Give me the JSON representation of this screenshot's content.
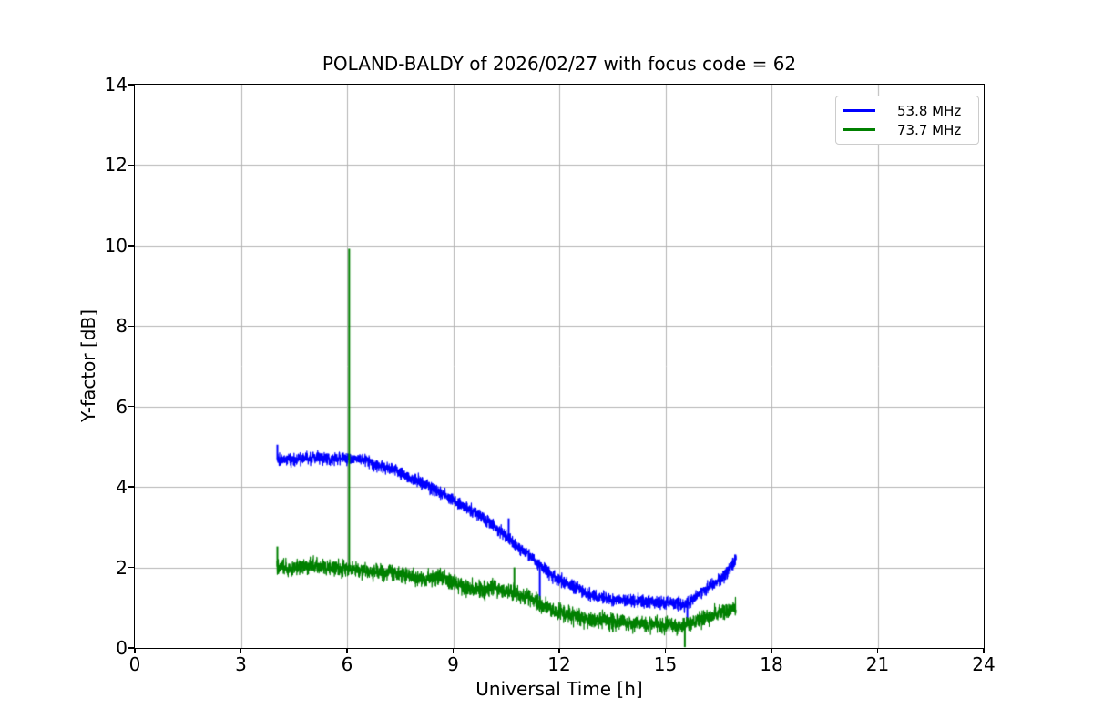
{
  "chart_data": {
    "type": "line",
    "title": "POLAND-BALDY of 2026/02/27 with focus code = 62",
    "xlabel": "Universal Time [h]",
    "ylabel": "Y-factor [dB]",
    "xlim": [
      0,
      24
    ],
    "ylim": [
      0,
      14
    ],
    "x_ticks": [
      0,
      3,
      6,
      9,
      12,
      15,
      18,
      21,
      24
    ],
    "y_ticks": [
      0,
      2,
      4,
      6,
      8,
      10,
      12,
      14
    ],
    "grid": true,
    "grid_color": "#b3b3b3",
    "axis_color": "#000000",
    "background_color": "#ffffff",
    "legend_position": "upper right",
    "series": [
      {
        "name": "53.8 MHz",
        "color": "#0000ff",
        "noise_db": 0.075,
        "points": [
          [
            4.02,
            4.7
          ],
          [
            4.4,
            4.68
          ],
          [
            4.8,
            4.71
          ],
          [
            5.2,
            4.72
          ],
          [
            5.6,
            4.71
          ],
          [
            6.0,
            4.72
          ],
          [
            6.3,
            4.74
          ],
          [
            6.55,
            4.66
          ],
          [
            6.8,
            4.56
          ],
          [
            7.1,
            4.49
          ],
          [
            7.4,
            4.4
          ],
          [
            7.7,
            4.28
          ],
          [
            8.0,
            4.16
          ],
          [
            8.3,
            4.02
          ],
          [
            8.6,
            3.88
          ],
          [
            8.9,
            3.74
          ],
          [
            9.2,
            3.58
          ],
          [
            9.5,
            3.42
          ],
          [
            9.8,
            3.26
          ],
          [
            10.1,
            3.07
          ],
          [
            10.4,
            2.86
          ],
          [
            10.7,
            2.62
          ],
          [
            11.0,
            2.4
          ],
          [
            11.3,
            2.18
          ],
          [
            11.6,
            1.95
          ],
          [
            11.9,
            1.74
          ],
          [
            12.2,
            1.6
          ],
          [
            12.5,
            1.48
          ],
          [
            12.8,
            1.36
          ],
          [
            13.1,
            1.28
          ],
          [
            13.5,
            1.22
          ],
          [
            14.0,
            1.18
          ],
          [
            14.5,
            1.15
          ],
          [
            15.0,
            1.13
          ],
          [
            15.3,
            1.1
          ],
          [
            15.55,
            1.07
          ],
          [
            15.8,
            1.22
          ],
          [
            16.1,
            1.45
          ],
          [
            16.4,
            1.62
          ],
          [
            16.7,
            1.82
          ],
          [
            17.0,
            2.22
          ]
        ],
        "spikes": [
          {
            "t": 4.03,
            "peak": 5.05
          },
          {
            "t": 6.75,
            "peak": 4.38
          },
          {
            "t": 10.57,
            "peak": 3.22
          },
          {
            "t": 11.45,
            "peak": 1.22
          },
          {
            "t": 15.62,
            "peak": 0.72
          },
          {
            "t": 16.98,
            "peak": 2.32
          }
        ]
      },
      {
        "name": "73.7 MHz",
        "color": "#008000",
        "noise_db": 0.1,
        "points": [
          [
            4.02,
            2.02
          ],
          [
            4.4,
            1.98
          ],
          [
            4.8,
            2.03
          ],
          [
            5.1,
            2.05
          ],
          [
            5.4,
            2.0
          ],
          [
            5.7,
            1.97
          ],
          [
            6.0,
            1.98
          ],
          [
            6.3,
            1.92
          ],
          [
            6.6,
            1.9
          ],
          [
            6.9,
            1.88
          ],
          [
            7.2,
            1.86
          ],
          [
            7.5,
            1.83
          ],
          [
            7.8,
            1.79
          ],
          [
            8.1,
            1.74
          ],
          [
            8.4,
            1.73
          ],
          [
            8.55,
            1.79
          ],
          [
            8.8,
            1.7
          ],
          [
            9.1,
            1.57
          ],
          [
            9.4,
            1.49
          ],
          [
            9.7,
            1.45
          ],
          [
            10.0,
            1.44
          ],
          [
            10.15,
            1.52
          ],
          [
            10.3,
            1.45
          ],
          [
            10.6,
            1.4
          ],
          [
            10.9,
            1.32
          ],
          [
            11.2,
            1.22
          ],
          [
            11.5,
            1.08
          ],
          [
            11.8,
            0.95
          ],
          [
            12.1,
            0.86
          ],
          [
            12.5,
            0.78
          ],
          [
            12.9,
            0.71
          ],
          [
            13.3,
            0.67
          ],
          [
            13.8,
            0.63
          ],
          [
            14.3,
            0.61
          ],
          [
            14.8,
            0.58
          ],
          [
            15.2,
            0.56
          ],
          [
            15.5,
            0.54
          ],
          [
            15.8,
            0.64
          ],
          [
            16.1,
            0.76
          ],
          [
            16.5,
            0.87
          ],
          [
            17.0,
            1.0
          ]
        ],
        "spikes": [
          {
            "t": 4.03,
            "peak": 2.52
          },
          {
            "t": 6.06,
            "peak": 9.92
          },
          {
            "t": 10.07,
            "peak": 1.66
          },
          {
            "t": 10.73,
            "peak": 2.0
          },
          {
            "t": 15.55,
            "peak": 0.02
          }
        ]
      }
    ]
  }
}
